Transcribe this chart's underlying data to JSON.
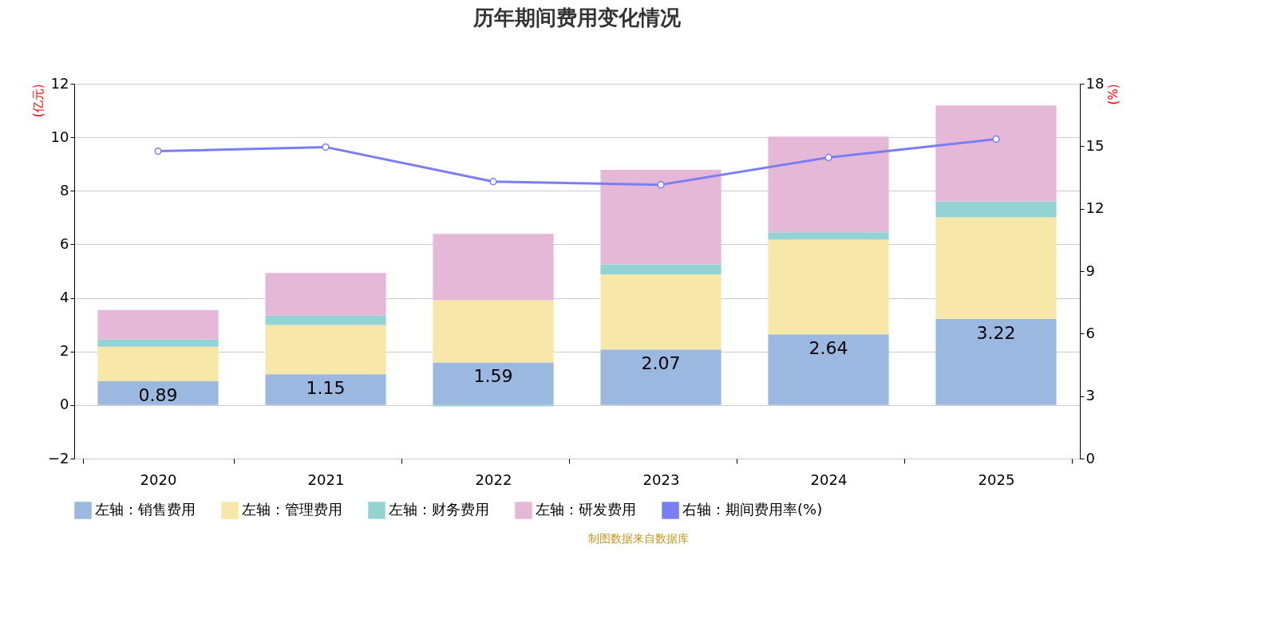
{
  "chart_data": {
    "type": "bar",
    "title": "历年期间费用变化情况",
    "ylabel": "(亿元)",
    "y2label": "(%)",
    "categories": [
      "2020",
      "2021",
      "2022",
      "2023",
      "2024",
      "2025"
    ],
    "stacked": true,
    "series": [
      {
        "name": "左轴：销售费用",
        "color": "#9bb8e1",
        "values": [
          0.89,
          1.15,
          1.59,
          2.07,
          2.64,
          3.22
        ],
        "value_labels": [
          "0.89",
          "1.15",
          "1.59",
          "2.07",
          "2.64",
          "3.22"
        ]
      },
      {
        "name": "左轴：管理费用",
        "color": "#f7e7a9",
        "values": [
          1.29,
          1.84,
          2.32,
          2.8,
          3.54,
          3.79
        ]
      },
      {
        "name": "左轴：财务费用",
        "color": "#94d3d3",
        "values": [
          0.27,
          0.35,
          -0.05,
          0.38,
          0.27,
          0.6
        ]
      },
      {
        "name": "左轴：研发费用",
        "color": "#e6b8d8",
        "values": [
          1.1,
          1.59,
          2.48,
          3.53,
          3.58,
          3.58
        ]
      },
      {
        "name": "右轴：期间费用率(%)",
        "type": "line",
        "axis": "y2",
        "color": "#7a7ef5",
        "marker": "circle",
        "values": [
          14.76,
          14.96,
          13.3,
          13.15,
          14.46,
          15.34
        ]
      }
    ],
    "ylim": [
      -2,
      12
    ],
    "yticks": [
      -2,
      0,
      2,
      4,
      6,
      8,
      10,
      12
    ],
    "y2lim": [
      0,
      18
    ],
    "y2ticks": [
      0,
      3,
      6,
      9,
      12,
      15,
      18
    ],
    "grid": "y",
    "legend": "bottom",
    "annotations": [
      "制图数据来自数据库"
    ]
  }
}
